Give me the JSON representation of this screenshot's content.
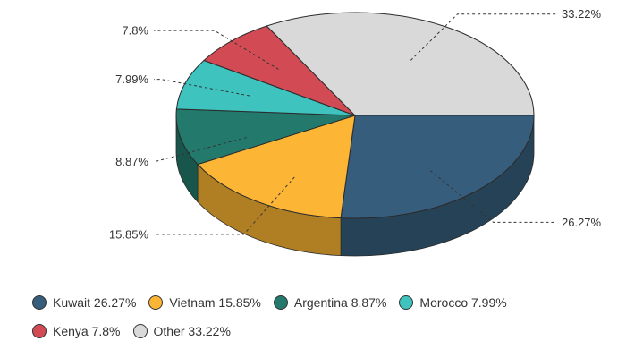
{
  "chart_data": {
    "type": "pie",
    "variant": "3d",
    "slices": [
      {
        "label": "Kuwait",
        "value": 26.27,
        "display": "26.27%",
        "color": "#365d7c",
        "dark": "#264257"
      },
      {
        "label": "Vietnam",
        "value": 15.85,
        "display": "15.85%",
        "color": "#fdb535",
        "dark": "#b07f24"
      },
      {
        "label": "Argentina",
        "value": 8.87,
        "display": "8.87%",
        "color": "#237a6c",
        "dark": "#18564c"
      },
      {
        "label": "Morocco",
        "value": 7.99,
        "display": "7.99%",
        "color": "#3ec3bf",
        "dark": "#2a8a86"
      },
      {
        "label": "Kenya",
        "value": 7.8,
        "display": "7.8%",
        "color": "#d24b54",
        "dark": "#93353b"
      },
      {
        "label": "Other",
        "value": 33.22,
        "display": "33.22%",
        "color": "#d9d9d9",
        "dark": "#9a9a9a"
      }
    ],
    "legend_position": "bottom"
  },
  "legend": {
    "rows": [
      [
        {
          "text": "Kuwait 26.27%",
          "color": "#365d7c"
        },
        {
          "text": "Vietnam 15.85%",
          "color": "#fdb535"
        },
        {
          "text": "Argentina 8.87%",
          "color": "#237a6c"
        },
        {
          "text": "Morocco 7.99%",
          "color": "#3ec3bf"
        }
      ],
      [
        {
          "text": "Kenya 7.8%",
          "color": "#d24b54"
        },
        {
          "text": "Other 33.22%",
          "color": "#d9d9d9"
        }
      ]
    ]
  }
}
